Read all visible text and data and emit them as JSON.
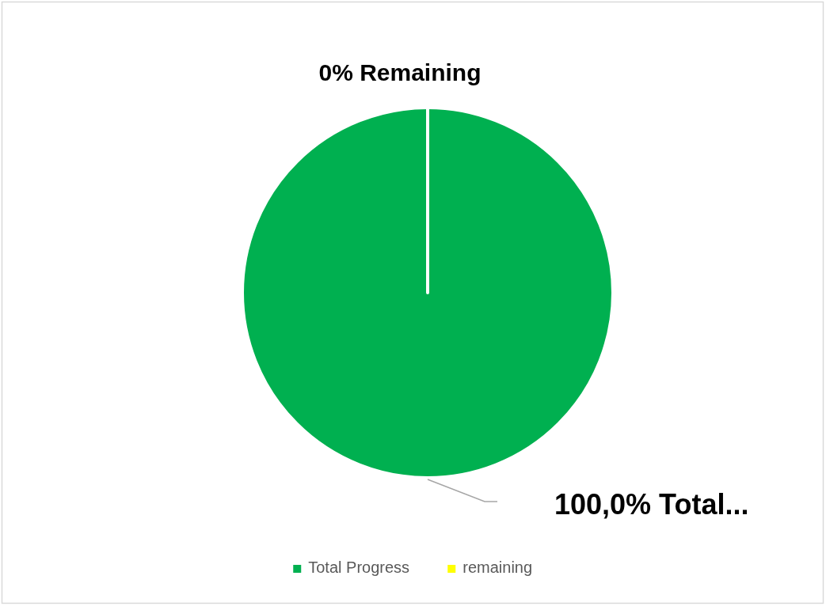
{
  "chart_data": {
    "type": "pie",
    "categories": [
      "Total Progress",
      "remaining"
    ],
    "values": [
      100,
      0
    ],
    "colors": [
      "#00b050",
      "#ffff00"
    ],
    "value_labels": [
      "100,0% Total...",
      "0% Remaining"
    ],
    "legend": "bottom"
  }
}
